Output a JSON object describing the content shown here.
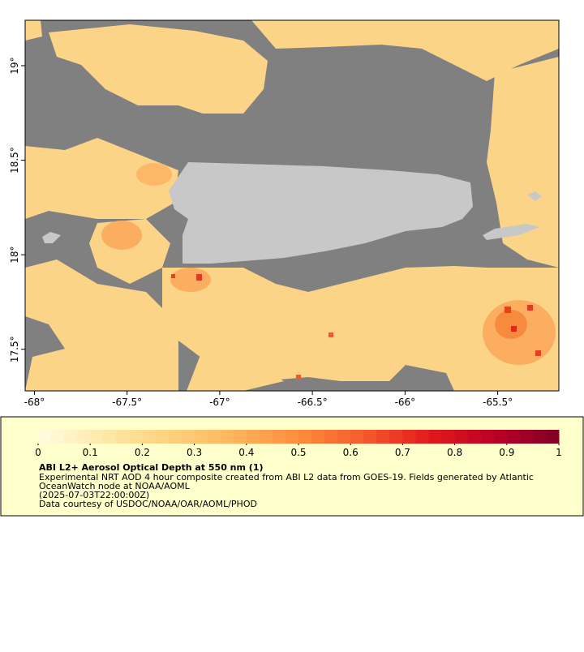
{
  "map": {
    "xlim": [
      -68.05,
      -65.17
    ],
    "ylim": [
      17.28,
      19.24
    ],
    "xticks": [
      {
        "value": -68,
        "label": "-68°"
      },
      {
        "value": -67.5,
        "label": "-67.5°"
      },
      {
        "value": -67,
        "label": "-67°"
      },
      {
        "value": -66.5,
        "label": "-66.5°"
      },
      {
        "value": -66,
        "label": "-66°"
      },
      {
        "value": -65.5,
        "label": "-65.5°"
      }
    ],
    "yticks": [
      {
        "value": 19,
        "label": "19°"
      },
      {
        "value": 18.5,
        "label": "18.5°"
      },
      {
        "value": 18,
        "label": "18°"
      },
      {
        "value": 17.5,
        "label": "17.5°"
      }
    ]
  },
  "colorbar": {
    "lim": [
      0,
      1
    ],
    "ticks": [
      0,
      0.1,
      0.2,
      0.3,
      0.4,
      0.5,
      0.6,
      0.7,
      0.8,
      0.9,
      1
    ],
    "steps": 40,
    "colormap": [
      "#fffde0",
      "#fee9a8",
      "#fed27e",
      "#fdb55e",
      "#fd8d3c",
      "#f55a2c",
      "#e31a1c",
      "#bd0026",
      "#800026"
    ]
  },
  "legend": {
    "title": "ABI L2+ Aerosol Optical Depth at 550 nm (1)",
    "lines": [
      "Experimental NRT AOD 4 hour composite created from ABI L2 data from GOES-19. Fields generated by Atlantic",
      "OceanWatch node at NOAA/AOML",
      "(2025-07-03T22:00:00Z)",
      "Data courtesy of USDOC/NOAA/OAR/AOML/PHOD"
    ]
  }
}
